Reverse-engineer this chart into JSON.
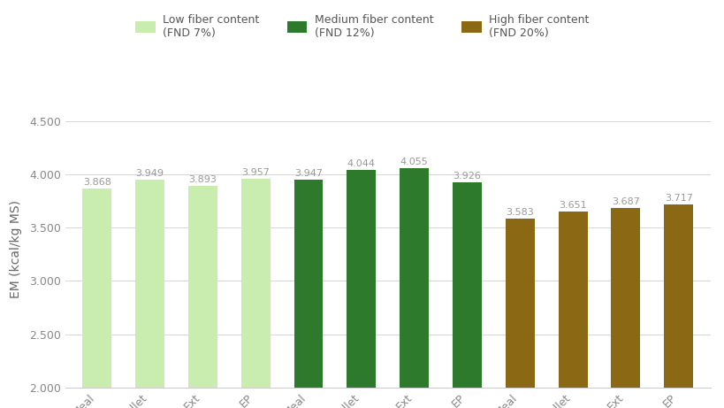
{
  "categories": [
    "Meal",
    "Pellet",
    "Ext",
    "EP",
    "Meal",
    "Pellet",
    "Ext",
    "EP",
    "Meal",
    "Pellet",
    "Ext",
    "EP"
  ],
  "values": [
    3.868,
    3.949,
    3.893,
    3.957,
    3.947,
    4.044,
    4.055,
    3.926,
    3.583,
    3.651,
    3.687,
    3.717
  ],
  "colors": [
    "#c8edae",
    "#c8edae",
    "#c8edae",
    "#c8edae",
    "#2d7a2d",
    "#2d7a2d",
    "#2d7a2d",
    "#2d7a2d",
    "#8b6914",
    "#8b6914",
    "#8b6914",
    "#8b6914"
  ],
  "legend_labels": [
    "Low fiber content\n(FND 7%)",
    "Medium fiber content\n(FND 12%)",
    "High fiber content\n(FND 20%)"
  ],
  "legend_colors": [
    "#c8edae",
    "#2d7a2d",
    "#8b6914"
  ],
  "ylabel": "EM (kcal/kg MS)",
  "ylim": [
    2.0,
    4.6
  ],
  "yticks": [
    2.0,
    2.5,
    3.0,
    3.5,
    4.0,
    4.5
  ],
  "ytick_labels": [
    "2.000",
    "2.500",
    "3.000",
    "3.500",
    "4.000",
    "4.500"
  ],
  "background_color": "#ffffff",
  "bar_width": 0.55,
  "value_label_color": "#999999",
  "value_label_fontsize": 8.0,
  "tick_label_color": "#888888",
  "ylabel_color": "#666666"
}
